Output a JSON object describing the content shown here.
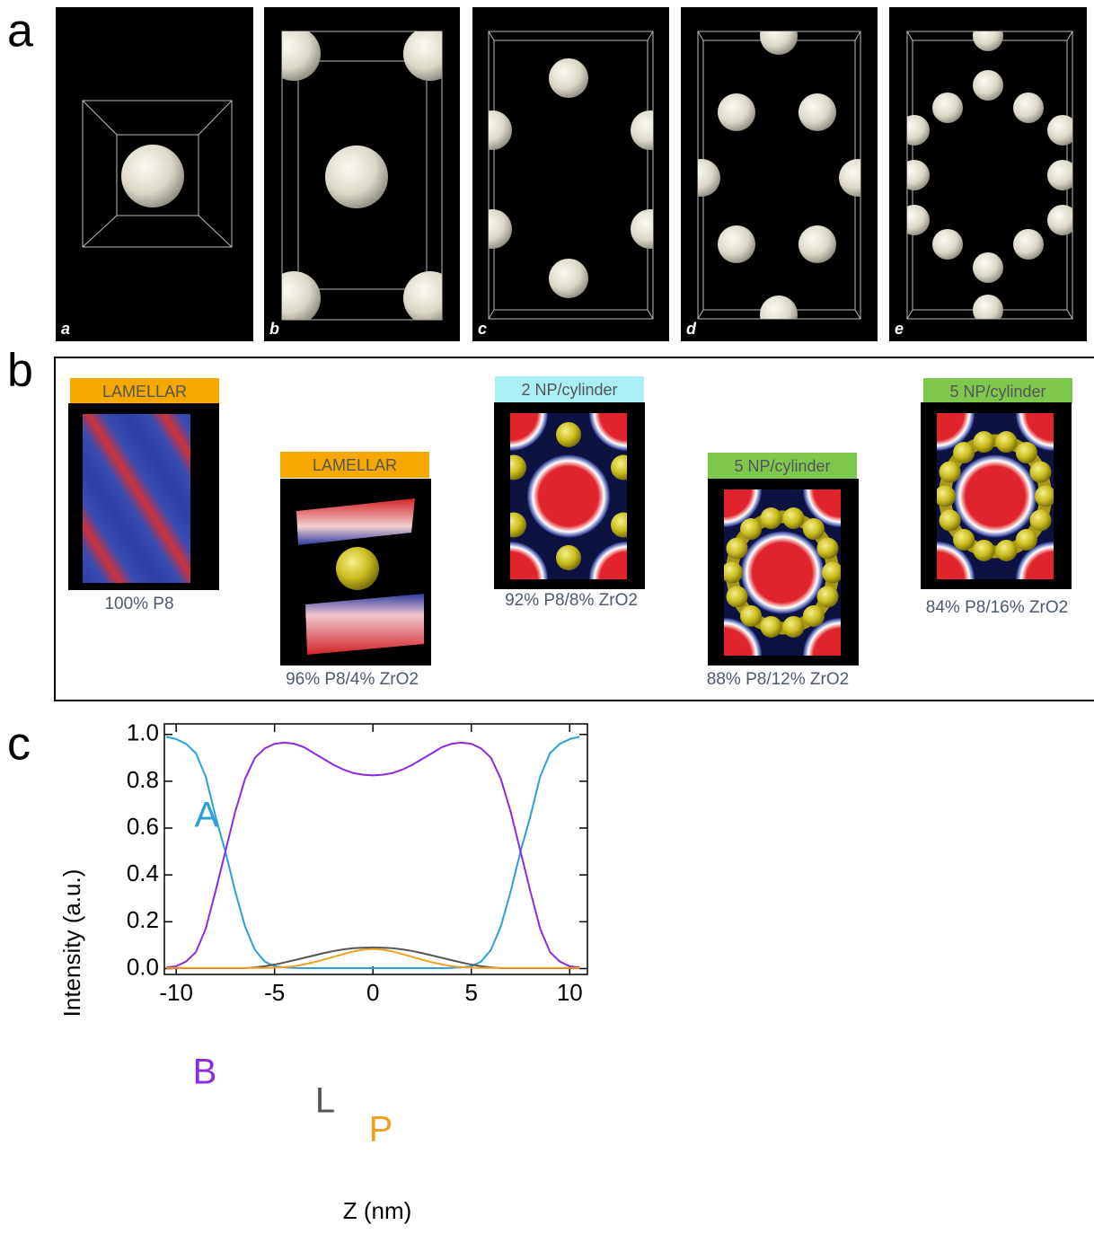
{
  "panel_a": {
    "letter": "a",
    "frames": [
      "a",
      "b",
      "c",
      "d",
      "e"
    ]
  },
  "panel_b": {
    "letter": "b",
    "items": [
      {
        "header": "LAMELLAR",
        "caption": "100% P8"
      },
      {
        "header": "LAMELLAR",
        "caption": "96% P8/4% ZrO2"
      },
      {
        "header": "2 NP/cylinder",
        "caption": "92% P8/8% ZrO2"
      },
      {
        "header": "5 NP/cylinder",
        "caption": "88% P8/12% ZrO2"
      },
      {
        "header": "5 NP/cylinder",
        "caption": "84% P8/16% ZrO2"
      }
    ]
  },
  "panel_c": {
    "letter": "c"
  },
  "chart_data": {
    "type": "line",
    "x_label": "Z (nm)",
    "y_label": "Intensity (a.u.)",
    "x": [
      -10.5,
      -10,
      -9.5,
      -9,
      -8.5,
      -8,
      -7.5,
      -7,
      -6.5,
      -6,
      -5.5,
      -5,
      -4.5,
      -4,
      -3.5,
      -3,
      -2.5,
      -2,
      -1.5,
      -1,
      -0.5,
      0,
      0.5,
      1,
      1.5,
      2,
      2.5,
      3,
      3.5,
      4,
      4.5,
      5,
      5.5,
      6,
      6.5,
      7,
      7.5,
      8,
      8.5,
      9,
      9.5,
      10,
      10.5
    ],
    "series": [
      {
        "name": "A",
        "color": "#2a9fd8",
        "values": [
          0.99,
          0.98,
          0.96,
          0.92,
          0.82,
          0.65,
          0.5,
          0.33,
          0.18,
          0.08,
          0.03,
          0.01,
          0.005,
          0.003,
          0.002,
          0.002,
          0.002,
          0.002,
          0.002,
          0.002,
          0.002,
          0.002,
          0.002,
          0.002,
          0.002,
          0.002,
          0.002,
          0.002,
          0.002,
          0.003,
          0.005,
          0.01,
          0.03,
          0.08,
          0.18,
          0.33,
          0.5,
          0.65,
          0.82,
          0.92,
          0.96,
          0.98,
          0.99
        ]
      },
      {
        "name": "B",
        "color": "#8a2be2",
        "values": [
          0.005,
          0.01,
          0.03,
          0.07,
          0.17,
          0.33,
          0.5,
          0.67,
          0.81,
          0.9,
          0.94,
          0.96,
          0.965,
          0.96,
          0.945,
          0.92,
          0.895,
          0.87,
          0.85,
          0.835,
          0.828,
          0.825,
          0.828,
          0.835,
          0.85,
          0.87,
          0.895,
          0.92,
          0.945,
          0.96,
          0.965,
          0.96,
          0.94,
          0.9,
          0.81,
          0.67,
          0.5,
          0.33,
          0.17,
          0.07,
          0.03,
          0.01,
          0.005
        ]
      },
      {
        "name": "L",
        "color": "#555555",
        "values": [
          0.002,
          0.002,
          0.002,
          0.002,
          0.002,
          0.002,
          0.002,
          0.002,
          0.002,
          0.005,
          0.01,
          0.017,
          0.026,
          0.036,
          0.046,
          0.056,
          0.066,
          0.075,
          0.082,
          0.087,
          0.089,
          0.09,
          0.089,
          0.087,
          0.082,
          0.075,
          0.066,
          0.056,
          0.046,
          0.036,
          0.026,
          0.017,
          0.01,
          0.005,
          0.002,
          0.002,
          0.002,
          0.002,
          0.002,
          0.002,
          0.002,
          0.002,
          0.002
        ]
      },
      {
        "name": "P",
        "color": "#f0a020",
        "values": [
          0.003,
          0.003,
          0.003,
          0.003,
          0.003,
          0.003,
          0.003,
          0.003,
          0.003,
          0.003,
          0.003,
          0.004,
          0.006,
          0.01,
          0.018,
          0.027,
          0.038,
          0.05,
          0.062,
          0.073,
          0.081,
          0.084,
          0.081,
          0.073,
          0.062,
          0.05,
          0.038,
          0.027,
          0.018,
          0.01,
          0.006,
          0.004,
          0.003,
          0.003,
          0.003,
          0.003,
          0.003,
          0.003,
          0.003,
          0.003,
          0.003,
          0.003,
          0.003
        ]
      }
    ],
    "xlim": [
      -10.6,
      10.9
    ],
    "ylim": [
      -0.025,
      1.045
    ],
    "xticks": [
      -10,
      -5,
      0,
      5,
      10
    ],
    "yticks": [
      {
        "value": 0,
        "label": "0.0"
      },
      0.2,
      0.4,
      0.6,
      0.8,
      {
        "value": 1,
        "label": "1.0"
      }
    ]
  }
}
